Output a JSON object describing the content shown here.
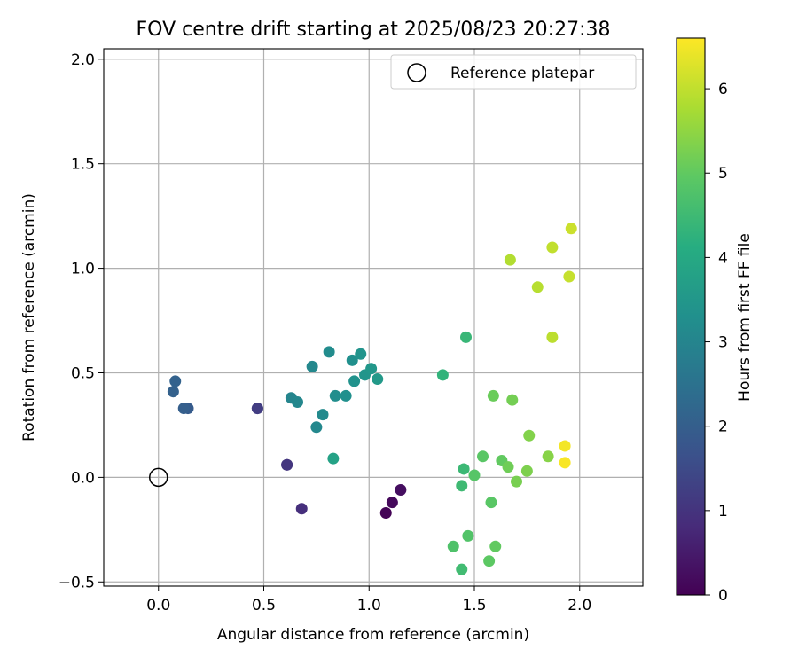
{
  "chart_data": {
    "type": "scatter",
    "title": "FOV centre drift starting at 2025/08/23 20:27:38",
    "xlabel": "Angular distance from reference (arcmin)",
    "ylabel": "Rotation from reference (arcmin)",
    "xlim": [
      -0.26,
      2.3
    ],
    "ylim": [
      -0.52,
      2.05
    ],
    "xticks": [
      0.0,
      0.5,
      1.0,
      1.5,
      2.0
    ],
    "xtick_labels": [
      "0.0",
      "0.5",
      "1.0",
      "1.5",
      "2.0"
    ],
    "yticks": [
      -0.5,
      0.0,
      0.5,
      1.0,
      1.5,
      2.0
    ],
    "ytick_labels": [
      "−0.5",
      "0.0",
      "0.5",
      "1.0",
      "1.5",
      "2.0"
    ],
    "grid": true,
    "legend": {
      "placement": "top-right",
      "entries": [
        "Reference platepar"
      ]
    },
    "reference_point": {
      "name": "Reference platepar",
      "x": 0.0,
      "y": 0.0,
      "marker": "open-circle"
    },
    "colorbar": {
      "label": "Hours from first FF file",
      "colormap": "viridis",
      "range": [
        0,
        6.6
      ],
      "ticks": [
        0,
        1,
        2,
        3,
        4,
        5,
        6
      ],
      "tick_labels": [
        "0",
        "1",
        "2",
        "3",
        "4",
        "5",
        "6"
      ]
    },
    "points": [
      {
        "x": 1.08,
        "y": -0.17,
        "h": 0.05
      },
      {
        "x": 1.11,
        "y": -0.12,
        "h": 0.15
      },
      {
        "x": 1.15,
        "y": -0.06,
        "h": 0.25
      },
      {
        "x": 0.68,
        "y": -0.15,
        "h": 0.9
      },
      {
        "x": 0.61,
        "y": 0.06,
        "h": 1.0
      },
      {
        "x": 0.61,
        "y": 0.06,
        "h": 1.05
      },
      {
        "x": 0.47,
        "y": 0.33,
        "h": 1.15
      },
      {
        "x": 0.47,
        "y": 0.33,
        "h": 1.2
      },
      {
        "x": 0.14,
        "y": 0.33,
        "h": 1.9
      },
      {
        "x": 0.12,
        "y": 0.33,
        "h": 2.0
      },
      {
        "x": 0.07,
        "y": 0.41,
        "h": 2.05
      },
      {
        "x": 0.08,
        "y": 0.46,
        "h": 2.1
      },
      {
        "x": 0.63,
        "y": 0.38,
        "h": 3.0
      },
      {
        "x": 0.66,
        "y": 0.36,
        "h": 3.05
      },
      {
        "x": 0.73,
        "y": 0.53,
        "h": 3.1
      },
      {
        "x": 0.75,
        "y": 0.24,
        "h": 3.1
      },
      {
        "x": 0.78,
        "y": 0.3,
        "h": 3.15
      },
      {
        "x": 0.81,
        "y": 0.6,
        "h": 3.2
      },
      {
        "x": 0.84,
        "y": 0.39,
        "h": 3.25
      },
      {
        "x": 0.89,
        "y": 0.39,
        "h": 3.3
      },
      {
        "x": 0.92,
        "y": 0.56,
        "h": 3.3
      },
      {
        "x": 0.93,
        "y": 0.46,
        "h": 3.35
      },
      {
        "x": 0.96,
        "y": 0.59,
        "h": 3.4
      },
      {
        "x": 0.98,
        "y": 0.49,
        "h": 3.45
      },
      {
        "x": 1.01,
        "y": 0.52,
        "h": 3.5
      },
      {
        "x": 1.04,
        "y": 0.47,
        "h": 3.55
      },
      {
        "x": 0.83,
        "y": 0.09,
        "h": 3.8
      },
      {
        "x": 1.35,
        "y": 0.49,
        "h": 4.3
      },
      {
        "x": 1.46,
        "y": 0.67,
        "h": 4.4
      },
      {
        "x": 1.45,
        "y": 0.04,
        "h": 4.45
      },
      {
        "x": 1.44,
        "y": -0.04,
        "h": 4.5
      },
      {
        "x": 1.44,
        "y": -0.44,
        "h": 4.55
      },
      {
        "x": 1.4,
        "y": -0.33,
        "h": 4.75
      },
      {
        "x": 1.47,
        "y": -0.28,
        "h": 4.8
      },
      {
        "x": 1.5,
        "y": 0.01,
        "h": 4.85
      },
      {
        "x": 1.54,
        "y": 0.1,
        "h": 4.9
      },
      {
        "x": 1.58,
        "y": -0.12,
        "h": 4.9
      },
      {
        "x": 1.57,
        "y": -0.4,
        "h": 4.95
      },
      {
        "x": 1.6,
        "y": -0.33,
        "h": 5.0
      },
      {
        "x": 1.59,
        "y": 0.39,
        "h": 5.1
      },
      {
        "x": 1.63,
        "y": 0.08,
        "h": 5.0
      },
      {
        "x": 1.66,
        "y": 0.05,
        "h": 5.15
      },
      {
        "x": 1.68,
        "y": 0.37,
        "h": 5.2
      },
      {
        "x": 1.7,
        "y": -0.02,
        "h": 5.25
      },
      {
        "x": 1.75,
        "y": 0.03,
        "h": 5.3
      },
      {
        "x": 1.76,
        "y": 0.2,
        "h": 5.35
      },
      {
        "x": 1.85,
        "y": 0.1,
        "h": 5.4
      },
      {
        "x": 1.67,
        "y": 1.04,
        "h": 5.85
      },
      {
        "x": 1.8,
        "y": 0.91,
        "h": 5.9
      },
      {
        "x": 1.87,
        "y": 0.67,
        "h": 5.95
      },
      {
        "x": 1.87,
        "y": 1.1,
        "h": 6.0
      },
      {
        "x": 1.95,
        "y": 0.96,
        "h": 6.05
      },
      {
        "x": 1.96,
        "y": 1.19,
        "h": 6.1
      },
      {
        "x": 1.93,
        "y": 0.15,
        "h": 6.5
      },
      {
        "x": 1.93,
        "y": 0.07,
        "h": 6.55
      }
    ]
  }
}
